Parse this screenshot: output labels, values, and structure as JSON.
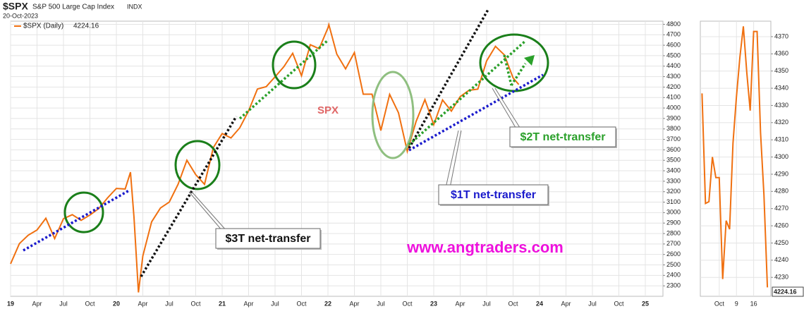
{
  "chart_data": [
    {
      "type": "line",
      "title": "$SPX",
      "subtitle": "S&P 500 Large Cap Index",
      "exchange": "INDX",
      "date": "20-Oct-2023",
      "annotations": [
        "SPX",
        "$3T net-transfer",
        "$2T net-transfer",
        "$1T net-transfer",
        "www.angtraders.com"
      ],
      "grid": true,
      "xlim": [
        0,
        74
      ],
      "xticks": [
        {
          "value": 0,
          "label": "19"
        },
        {
          "value": 3,
          "label": "Apr"
        },
        {
          "value": 6,
          "label": "Jul"
        },
        {
          "value": 9,
          "label": "Oct"
        },
        {
          "value": 12,
          "label": "20"
        },
        {
          "value": 15,
          "label": "Apr"
        },
        {
          "value": 18,
          "label": "Jul"
        },
        {
          "value": 21,
          "label": "Oct"
        },
        {
          "value": 24,
          "label": "21"
        },
        {
          "value": 27,
          "label": "Apr"
        },
        {
          "value": 30,
          "label": "Jul"
        },
        {
          "value": 33,
          "label": "Oct"
        },
        {
          "value": 36,
          "label": "22"
        },
        {
          "value": 39,
          "label": "Apr"
        },
        {
          "value": 42,
          "label": "Jul"
        },
        {
          "value": 45,
          "label": "Oct"
        },
        {
          "value": 48,
          "label": "23"
        },
        {
          "value": 51,
          "label": "Apr"
        },
        {
          "value": 54,
          "label": "Jul"
        },
        {
          "value": 57,
          "label": "Oct"
        },
        {
          "value": 60,
          "label": "24"
        },
        {
          "value": 63,
          "label": "Apr"
        },
        {
          "value": 66,
          "label": "Jul"
        },
        {
          "value": 69,
          "label": "Oct"
        },
        {
          "value": 72,
          "label": "25"
        }
      ],
      "ylim": [
        2200,
        4830
      ],
      "yticks": [
        2300,
        2400,
        2500,
        2600,
        2700,
        2800,
        2900,
        3000,
        3100,
        3200,
        3300,
        3400,
        3500,
        3600,
        3700,
        3800,
        3900,
        4000,
        4100,
        4200,
        4300,
        4400,
        4500,
        4600,
        4700,
        4800
      ],
      "series": [
        {
          "name": "$SPX (Daily)",
          "color": "#f07010",
          "x": [
            0,
            1,
            2,
            3,
            4,
            5,
            6,
            7,
            8,
            9,
            10,
            11,
            12,
            13,
            13.6,
            14,
            14.5,
            15,
            16,
            17,
            18,
            19,
            20,
            21,
            22,
            23,
            24,
            25,
            26,
            27,
            28,
            29,
            30,
            31,
            32,
            33,
            34,
            35,
            36,
            36.1,
            37,
            38,
            39,
            40,
            41,
            42,
            43,
            44,
            45,
            46,
            47,
            48,
            49,
            50,
            51,
            52,
            53,
            54,
            55,
            56,
            57,
            57.65
          ],
          "values": [
            2510,
            2704,
            2784,
            2834,
            2946,
            2752,
            2942,
            2980,
            2926,
            2977,
            3038,
            3141,
            3231,
            3226,
            3386,
            2954,
            2237,
            2585,
            2912,
            3044,
            3100,
            3271,
            3500,
            3363,
            3270,
            3622,
            3756,
            3714,
            3811,
            3973,
            4181,
            4204,
            4298,
            4395,
            4523,
            4308,
            4605,
            4567,
            4766,
            4796,
            4516,
            4374,
            4530,
            4132,
            4132,
            3785,
            4130,
            3955,
            3586,
            3872,
            4080,
            3840,
            4077,
            3970,
            4109,
            4169,
            4180,
            4450,
            4589,
            4508,
            4288,
            4224.16
          ]
        }
      ]
    },
    {
      "type": "line",
      "grid": true,
      "xlim": [
        -5.5,
        15
      ],
      "xticks": [
        {
          "value": 0,
          "label": "Oct"
        },
        {
          "value": 5,
          "label": "9"
        },
        {
          "value": 10,
          "label": "16"
        }
      ],
      "ylim": [
        4219,
        4379
      ],
      "yticks": [
        4230,
        4240,
        4250,
        4260,
        4270,
        4280,
        4290,
        4300,
        4310,
        4320,
        4330,
        4340,
        4350,
        4360,
        4370
      ],
      "series": [
        {
          "color": "#f07010",
          "x": [
            -5,
            -4,
            -3,
            -2,
            -1,
            0,
            1,
            2,
            3,
            4,
            5,
            6,
            7,
            8,
            9,
            10,
            11,
            12,
            13,
            14
          ],
          "values": [
            4337,
            4273,
            4274,
            4300,
            4288,
            4288,
            4229,
            4263,
            4258,
            4308,
            4335,
            4358,
            4376,
            4349,
            4327,
            4373,
            4373,
            4314,
            4278,
            4224.16
          ]
        }
      ]
    }
  ]
}
